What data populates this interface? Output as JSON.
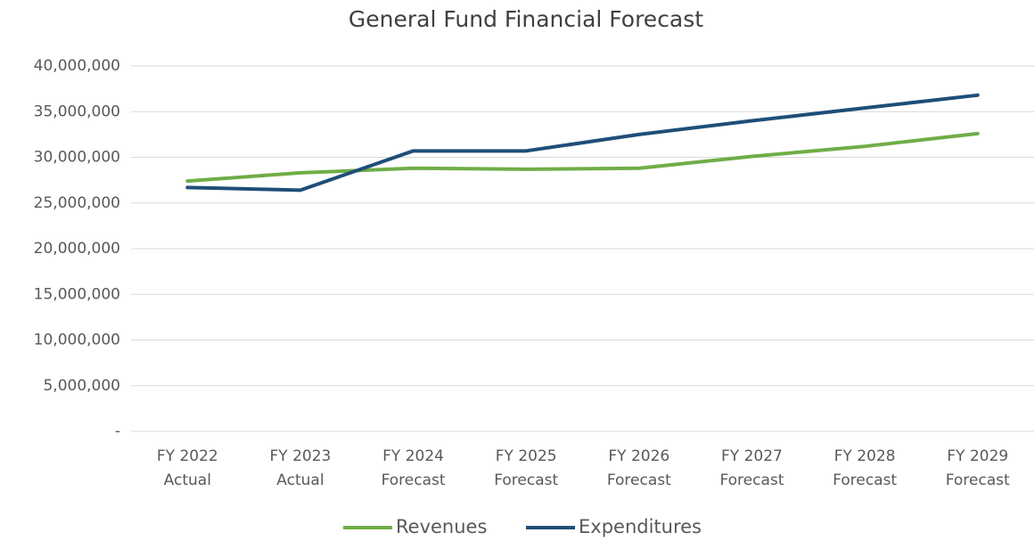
{
  "chart_data": {
    "type": "line",
    "title": "General Fund Financial Forecast",
    "categories": [
      [
        "FY 2022",
        "Actual"
      ],
      [
        "FY 2023",
        "Actual"
      ],
      [
        "FY 2024",
        "Forecast"
      ],
      [
        "FY 2025",
        "Forecast"
      ],
      [
        "FY 2026",
        "Forecast"
      ],
      [
        "FY 2027",
        "Forecast"
      ],
      [
        "FY 2028",
        "Forecast"
      ],
      [
        "FY 2029",
        "Forecast"
      ]
    ],
    "series": [
      {
        "name": "Revenues",
        "color": "#70ad47",
        "values": [
          27400000,
          28300000,
          28800000,
          28700000,
          28800000,
          30100000,
          31200000,
          32600000
        ]
      },
      {
        "name": "Expenditures",
        "color": "#1f4e79",
        "values": [
          26700000,
          26400000,
          30700000,
          30700000,
          32500000,
          34000000,
          35400000,
          36800000
        ]
      }
    ],
    "ylim": [
      0,
      40000000
    ],
    "yticks": [
      {
        "value": 0,
        "label": "-"
      },
      {
        "value": 5000000,
        "label": "5,000,000"
      },
      {
        "value": 10000000,
        "label": "10,000,000"
      },
      {
        "value": 15000000,
        "label": "15,000,000"
      },
      {
        "value": 20000000,
        "label": "20,000,000"
      },
      {
        "value": 25000000,
        "label": "25,000,000"
      },
      {
        "value": 30000000,
        "label": "30,000,000"
      },
      {
        "value": 35000000,
        "label": "35,000,000"
      },
      {
        "value": 40000000,
        "label": "40,000,000"
      }
    ],
    "grid": true,
    "legend": "bottom"
  }
}
